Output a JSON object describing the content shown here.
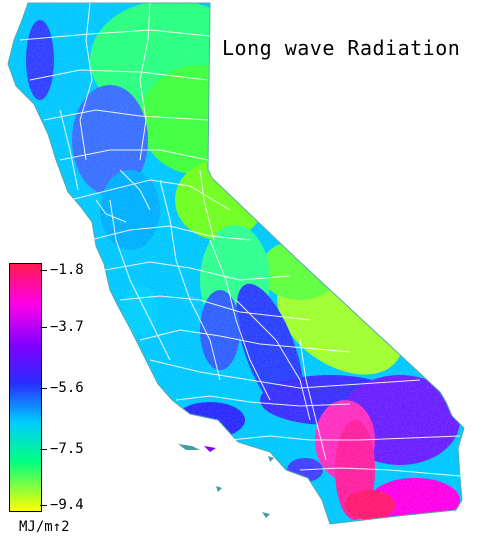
{
  "map": {
    "title": "Long wave Radiation",
    "region": "California",
    "colors": {
      "max": "#ff1a50",
      "high": "#ff00e8",
      "mid_high": "#8000ff",
      "mid": "#2a2aff",
      "mid_low": "#00ccff",
      "low": "#00ff80",
      "min": "#ffff00",
      "boundaries": "#ffffff"
    }
  },
  "legend": {
    "unit": "MJ/m↑2",
    "ticks": [
      "−1.8",
      "−3.7",
      "−5.6",
      "−7.5",
      "−9.4"
    ],
    "range": [
      -9.4,
      -1.8
    ]
  }
}
